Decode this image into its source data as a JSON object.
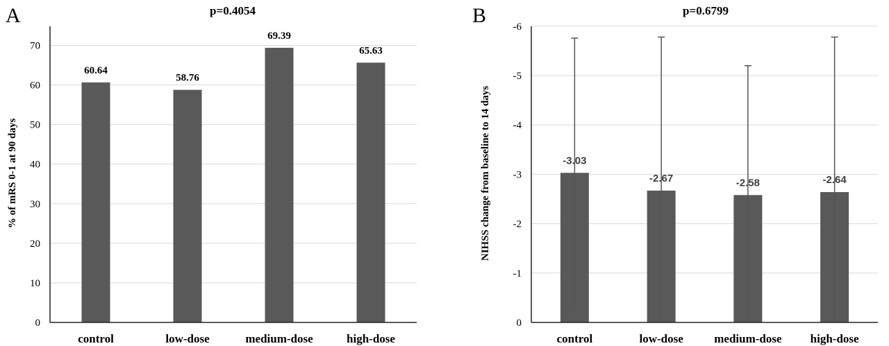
{
  "chart_data": [
    {
      "type": "bar",
      "panel_label": "A",
      "title": "p=0.4054",
      "ylabel": "% of mRS 0-1 at 90 days",
      "xlabel": "",
      "categories": [
        "control",
        "low-dose",
        "medium-dose",
        "high-dose"
      ],
      "values": [
        60.64,
        58.76,
        69.39,
        65.63
      ],
      "data_labels": [
        "60.64",
        "58.76",
        "69.39",
        "65.63"
      ],
      "ylim": [
        0,
        75
      ],
      "yticks": [
        0,
        10,
        20,
        30,
        40,
        50,
        60,
        70
      ],
      "ytick_labels": [
        "0",
        "10",
        "20",
        "30",
        "40",
        "50",
        "60",
        "70"
      ],
      "grid": true,
      "color": "#595959"
    },
    {
      "type": "bar",
      "panel_label": "B",
      "title": "p=0.6799",
      "ylabel": "NIHSS change from baseline to 14 days",
      "xlabel": "",
      "inverted_y": true,
      "categories": [
        "control",
        "low-dose",
        "medium-dose",
        "high-dose"
      ],
      "values": [
        -3.03,
        -2.67,
        -2.58,
        -2.64
      ],
      "data_labels": [
        "-3.03",
        "-2.67",
        "-2.58",
        "-2.64"
      ],
      "error_upper": [
        -5.76,
        -5.78,
        -5.2,
        -5.78
      ],
      "error_lower": [
        -0.3,
        0,
        0,
        0
      ],
      "ylim": [
        0,
        -6
      ],
      "yticks": [
        0,
        -1,
        -2,
        -3,
        -4,
        -5,
        -6
      ],
      "ytick_labels": [
        "0",
        "-1",
        "-2",
        "-3",
        "-4",
        "-5",
        "-6"
      ],
      "grid": true,
      "color": "#595959"
    }
  ]
}
